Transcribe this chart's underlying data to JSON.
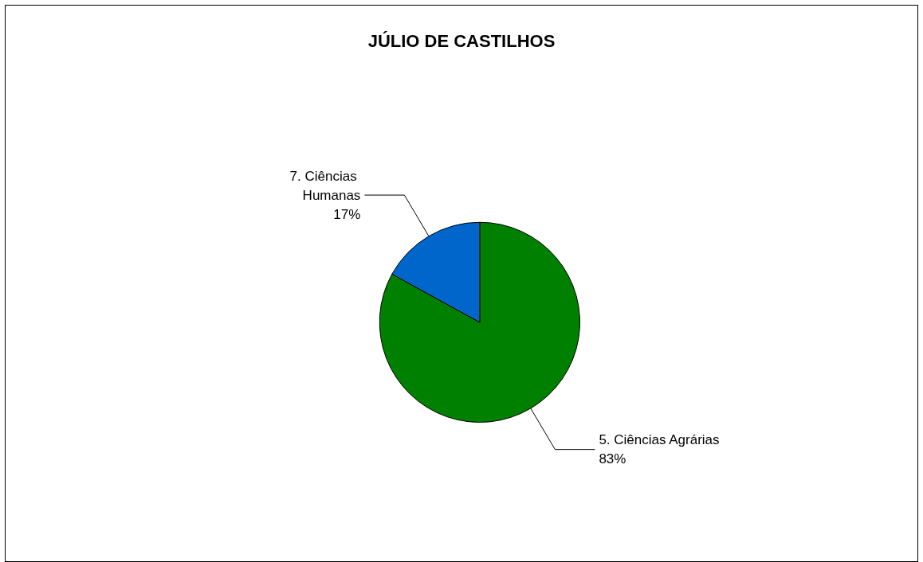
{
  "chart_data": {
    "type": "pie",
    "title": "JÚLIO DE CASTILHOS",
    "categories": [
      "5. Ciências Agrárias",
      "7. Ciências Humanas"
    ],
    "values": [
      83,
      17
    ],
    "value_labels": [
      "83%",
      "17%"
    ],
    "colors": [
      "#008000",
      "#0066cc"
    ],
    "legend": false
  }
}
